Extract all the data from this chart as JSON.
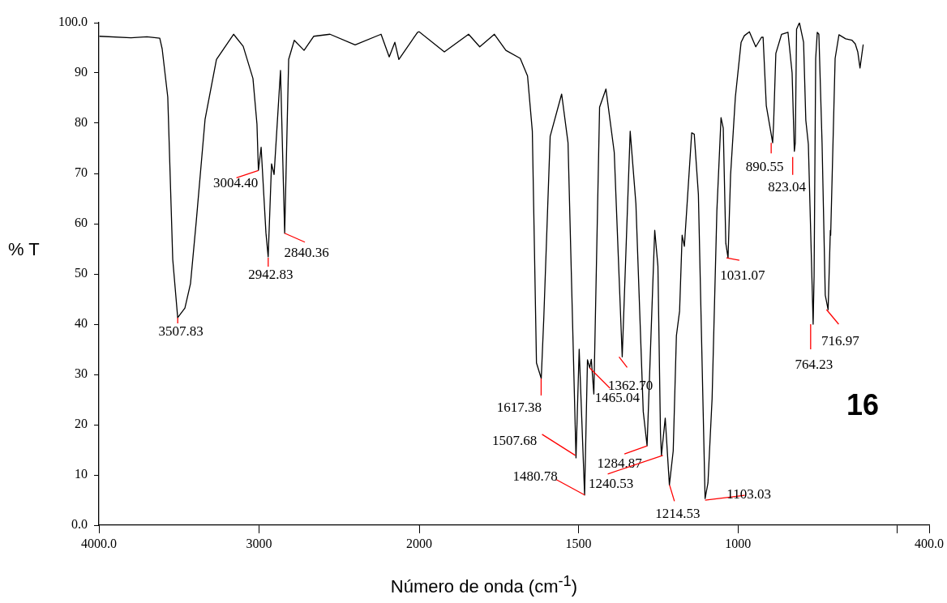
{
  "chart_data": [
    {
      "type": "line",
      "xlabel": "Número de onda (cm$^{-1}$)",
      "ylabel": "% T",
      "color": "#000000",
      "xlim": [
        4000,
        2000
      ],
      "ylim": [
        0,
        100
      ],
      "xticks": [
        {
          "value": 4000,
          "label": "4000.0"
        },
        3000,
        2000
      ],
      "yticks": [
        {
          "value": 0,
          "label": "0.0"
        },
        10,
        20,
        30,
        40,
        50,
        60,
        70,
        80,
        90,
        {
          "value": 100,
          "label": "100.0"
        }
      ],
      "x": [
        3995,
        3800,
        3700,
        3620,
        3605,
        3570,
        3539,
        3508,
        3463,
        3428,
        3392,
        3337,
        3266,
        3159,
        3099,
        3038,
        3013,
        3004,
        2987,
        2957,
        2943,
        2922,
        2906,
        2866,
        2840,
        2815,
        2780,
        2719,
        2658,
        2557,
        2400,
        2238,
        2187,
        2152,
        2127,
        2010,
        2000
      ],
      "values": [
        97.3,
        97.0,
        97.2,
        96.9,
        94.8,
        85.2,
        52.9,
        41.3,
        43.2,
        48.1,
        60.5,
        80.8,
        92.7,
        97.7,
        95.3,
        88.9,
        79.8,
        70.6,
        75.2,
        58.2,
        53.4,
        71.9,
        69.8,
        90.5,
        58.1,
        92.7,
        96.5,
        94.5,
        97.3,
        97.7,
        95.6,
        97.7,
        93.2,
        96.1,
        92.7,
        98.1,
        98.2
      ],
      "annotations": [
        {
          "text": "3507.83",
          "x": 3507.83,
          "y": 41.3
        },
        {
          "text": "3004.40",
          "x": 3004.4,
          "y": 70.6
        },
        {
          "text": "2942.83",
          "x": 2942.83,
          "y": 53.4
        },
        {
          "text": "2840.36",
          "x": 2840.36,
          "y": 58.1
        }
      ]
    },
    {
      "type": "line",
      "color": "#000000",
      "tick_labels": "x",
      "xlim": [
        2000,
        400
      ],
      "ylim": [
        0,
        100
      ],
      "xticks": [
        1500,
        1000,
        {
          "value": 500,
          "label": null
        },
        {
          "value": 400,
          "label": "400.0"
        }
      ],
      "x": [
        2000,
        1921,
        1845,
        1810,
        1764,
        1728,
        1683,
        1660,
        1645,
        1632,
        1617,
        1609,
        1589,
        1553,
        1533,
        1508,
        1498,
        1481,
        1472,
        1465,
        1460,
        1452,
        1434,
        1414,
        1388,
        1363,
        1338,
        1320,
        1297,
        1285,
        1261,
        1251,
        1243,
        1240,
        1228,
        1215,
        1203,
        1193,
        1183,
        1175,
        1168,
        1145,
        1137,
        1124,
        1103,
        1094,
        1081,
        1066,
        1053,
        1046,
        1038,
        1031,
        1023,
        1008,
        990,
        980,
        964,
        944,
        926,
        921,
        911,
        891,
        888,
        881,
        863,
        843,
        830,
        823,
        820,
        816,
        807,
        794,
        787,
        779,
        764,
        761,
        756,
        751,
        746,
        736,
        726,
        717,
        710,
        709,
        695,
        683,
        662,
        642,
        632,
        624,
        617,
        607
      ],
      "values": [
        98.2,
        94.2,
        97.7,
        95.2,
        97.7,
        94.5,
        92.9,
        89.4,
        78.4,
        32.3,
        29.2,
        41.3,
        77.4,
        85.8,
        76.1,
        13.4,
        35.0,
        6.0,
        32.9,
        31.3,
        33.0,
        26.1,
        83.2,
        86.8,
        74.2,
        33.5,
        78.4,
        63.9,
        22.6,
        15.8,
        58.7,
        51.6,
        18.4,
        13.9,
        21.3,
        8.0,
        14.8,
        37.7,
        42.6,
        57.7,
        55.5,
        78.1,
        77.8,
        65.8,
        5.3,
        8.4,
        25.2,
        62.6,
        81.1,
        79.0,
        56.1,
        53.2,
        69.7,
        85.2,
        96.1,
        97.4,
        98.2,
        95.2,
        97.1,
        97.1,
        83.5,
        76.1,
        80.0,
        93.9,
        97.7,
        98.1,
        90.0,
        74.4,
        76.1,
        98.7,
        100.0,
        96.1,
        80.6,
        75.8,
        40.0,
        49.7,
        92.9,
        98.1,
        97.7,
        76.1,
        45.8,
        42.9,
        58.7,
        57.7,
        92.9,
        97.6,
        96.8,
        96.5,
        95.8,
        94.2,
        91.0,
        95.6
      ],
      "annotations": [
        {
          "text": "1617.38",
          "x": 1617.38,
          "y": 29.2
        },
        {
          "text": "1507.68",
          "x": 1507.68,
          "y": 13.4
        },
        {
          "text": "1480.78",
          "x": 1480.78,
          "y": 6.0
        },
        {
          "text": "1465.04",
          "x": 1465.04,
          "y": 31.3
        },
        {
          "text": "1362.70",
          "x": 1362.7,
          "y": 33.5
        },
        {
          "text": "1284.87",
          "x": 1284.87,
          "y": 15.8
        },
        {
          "text": "1240.53",
          "x": 1240.53,
          "y": 13.9
        },
        {
          "text": "1214.53",
          "x": 1214.53,
          "y": 8.0
        },
        {
          "text": "1103.03",
          "x": 1103.03,
          "y": 5.3
        },
        {
          "text": "1031.07",
          "x": 1031.07,
          "y": 53.2
        },
        {
          "text": "890.55",
          "x": 890.55,
          "y": 76.1
        },
        {
          "text": "823.04",
          "x": 823.04,
          "y": 74.4
        },
        {
          "text": "764.23",
          "x": 764.23,
          "y": 40.0
        },
        {
          "text": "716.97",
          "x": 716.97,
          "y": 42.9
        },
        "16"
      ]
    }
  ]
}
